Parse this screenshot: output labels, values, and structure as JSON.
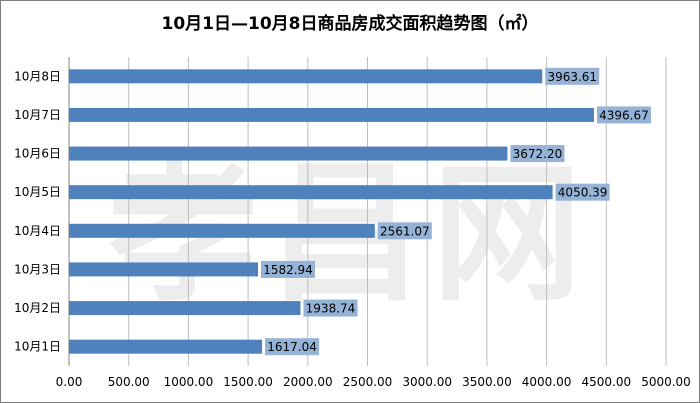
{
  "chart_data": {
    "type": "bar",
    "orientation": "horizontal",
    "title": "10月1日—10月8日商品房成交面积趋势图（㎡）",
    "categories": [
      "10月8日",
      "10月7日",
      "10月6日",
      "10月5日",
      "10月4日",
      "10月3日",
      "10月2日",
      "10月1日"
    ],
    "values": [
      3963.61,
      4396.67,
      3672.2,
      4050.39,
      2561.07,
      1582.94,
      1938.74,
      1617.04
    ],
    "value_labels": [
      "3963.61",
      "4396.67",
      "3672.20",
      "4050.39",
      "2561.07",
      "1582.94",
      "1938.74",
      "1617.04"
    ],
    "xlim": [
      0,
      5000
    ],
    "xticks": [
      "0.00",
      "500.00",
      "1000.00",
      "1500.00",
      "2000.00",
      "2500.00",
      "3000.00",
      "3500.00",
      "4000.00",
      "4500.00",
      "5000.00"
    ],
    "grid": "vertical",
    "bar_color": "#4f81bd",
    "label_box_color": "#95b3d7"
  },
  "watermark": "孝昌网"
}
